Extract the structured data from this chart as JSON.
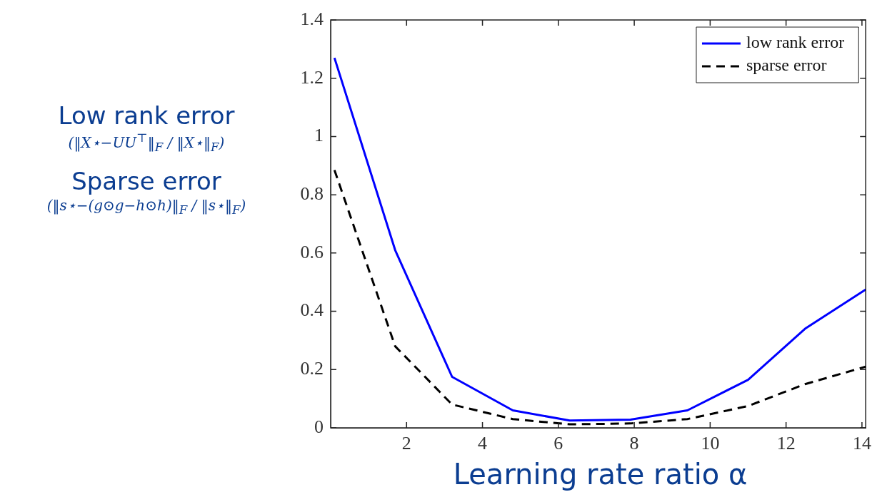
{
  "chart_data": {
    "type": "line",
    "xlabel": "Learning rate ratio α",
    "annotations": [
      "Low rank error",
      "(‖X⋆−UU$^{⊤}$‖$_{F}$ / ‖X⋆‖$_{F}$)",
      "Sparse error",
      "(‖s⋆−(g⊙g−h⊙h)‖$_{F}$ / ‖s⋆‖$_{F}$)"
    ],
    "x": [
      0.1,
      1.7,
      3.2,
      4.8,
      6.3,
      7.9,
      9.4,
      11.0,
      12.5,
      14.1
    ],
    "series": [
      {
        "name": "low rank error",
        "color": "#0000ff",
        "line_style": "solid",
        "values": [
          1.27,
          0.61,
          0.175,
          0.06,
          0.025,
          0.028,
          0.06,
          0.165,
          0.34,
          0.475
        ]
      },
      {
        "name": "sparse error",
        "color": "#000000",
        "line_style": "dashed",
        "values": [
          0.885,
          0.28,
          0.08,
          0.03,
          0.012,
          0.015,
          0.03,
          0.075,
          0.15,
          0.21
        ]
      }
    ],
    "xlim": [
      0,
      14.1
    ],
    "xticks": [
      2,
      4,
      6,
      8,
      10,
      12,
      14
    ],
    "ylim": [
      0,
      1.4
    ],
    "yticks": [
      0,
      0.2,
      0.4,
      0.6,
      0.8,
      1,
      1.2,
      1.4
    ],
    "grid": false,
    "legend": "top right",
    "marker": "none"
  }
}
